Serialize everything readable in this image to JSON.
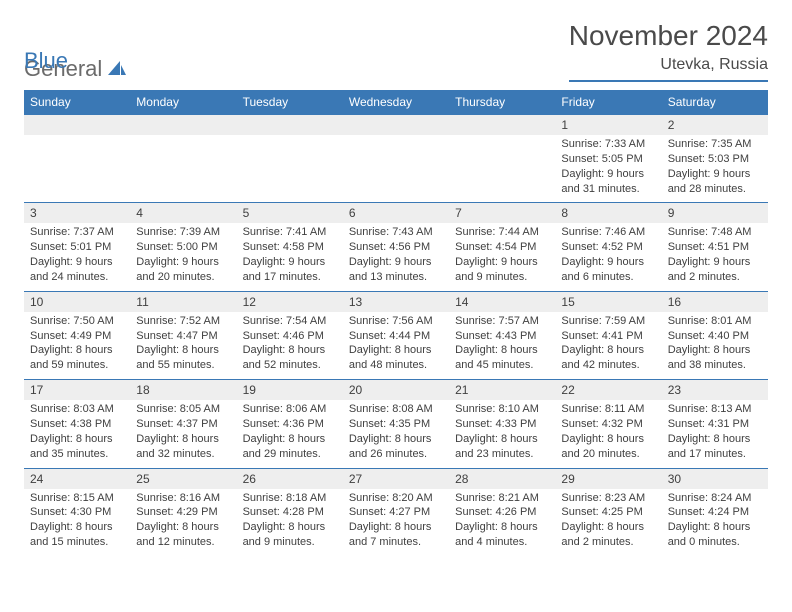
{
  "logo": {
    "text_gray": "General",
    "text_blue": "Blue"
  },
  "title": "November 2024",
  "location": "Utevka, Russia",
  "colors": {
    "header_bg": "#3a78b5",
    "header_text": "#ffffff",
    "daynum_bg": "#eeeeee",
    "text": "#404040",
    "rule": "#3a78b5"
  },
  "day_names": [
    "Sunday",
    "Monday",
    "Tuesday",
    "Wednesday",
    "Thursday",
    "Friday",
    "Saturday"
  ],
  "weeks": [
    [
      null,
      null,
      null,
      null,
      null,
      {
        "n": "1",
        "sr": "7:33 AM",
        "ss": "5:05 PM",
        "dh": "9",
        "dm": "31"
      },
      {
        "n": "2",
        "sr": "7:35 AM",
        "ss": "5:03 PM",
        "dh": "9",
        "dm": "28"
      }
    ],
    [
      {
        "n": "3",
        "sr": "7:37 AM",
        "ss": "5:01 PM",
        "dh": "9",
        "dm": "24"
      },
      {
        "n": "4",
        "sr": "7:39 AM",
        "ss": "5:00 PM",
        "dh": "9",
        "dm": "20"
      },
      {
        "n": "5",
        "sr": "7:41 AM",
        "ss": "4:58 PM",
        "dh": "9",
        "dm": "17"
      },
      {
        "n": "6",
        "sr": "7:43 AM",
        "ss": "4:56 PM",
        "dh": "9",
        "dm": "13"
      },
      {
        "n": "7",
        "sr": "7:44 AM",
        "ss": "4:54 PM",
        "dh": "9",
        "dm": "9"
      },
      {
        "n": "8",
        "sr": "7:46 AM",
        "ss": "4:52 PM",
        "dh": "9",
        "dm": "6"
      },
      {
        "n": "9",
        "sr": "7:48 AM",
        "ss": "4:51 PM",
        "dh": "9",
        "dm": "2"
      }
    ],
    [
      {
        "n": "10",
        "sr": "7:50 AM",
        "ss": "4:49 PM",
        "dh": "8",
        "dm": "59"
      },
      {
        "n": "11",
        "sr": "7:52 AM",
        "ss": "4:47 PM",
        "dh": "8",
        "dm": "55"
      },
      {
        "n": "12",
        "sr": "7:54 AM",
        "ss": "4:46 PM",
        "dh": "8",
        "dm": "52"
      },
      {
        "n": "13",
        "sr": "7:56 AM",
        "ss": "4:44 PM",
        "dh": "8",
        "dm": "48"
      },
      {
        "n": "14",
        "sr": "7:57 AM",
        "ss": "4:43 PM",
        "dh": "8",
        "dm": "45"
      },
      {
        "n": "15",
        "sr": "7:59 AM",
        "ss": "4:41 PM",
        "dh": "8",
        "dm": "42"
      },
      {
        "n": "16",
        "sr": "8:01 AM",
        "ss": "4:40 PM",
        "dh": "8",
        "dm": "38"
      }
    ],
    [
      {
        "n": "17",
        "sr": "8:03 AM",
        "ss": "4:38 PM",
        "dh": "8",
        "dm": "35"
      },
      {
        "n": "18",
        "sr": "8:05 AM",
        "ss": "4:37 PM",
        "dh": "8",
        "dm": "32"
      },
      {
        "n": "19",
        "sr": "8:06 AM",
        "ss": "4:36 PM",
        "dh": "8",
        "dm": "29"
      },
      {
        "n": "20",
        "sr": "8:08 AM",
        "ss": "4:35 PM",
        "dh": "8",
        "dm": "26"
      },
      {
        "n": "21",
        "sr": "8:10 AM",
        "ss": "4:33 PM",
        "dh": "8",
        "dm": "23"
      },
      {
        "n": "22",
        "sr": "8:11 AM",
        "ss": "4:32 PM",
        "dh": "8",
        "dm": "20"
      },
      {
        "n": "23",
        "sr": "8:13 AM",
        "ss": "4:31 PM",
        "dh": "8",
        "dm": "17"
      }
    ],
    [
      {
        "n": "24",
        "sr": "8:15 AM",
        "ss": "4:30 PM",
        "dh": "8",
        "dm": "15"
      },
      {
        "n": "25",
        "sr": "8:16 AM",
        "ss": "4:29 PM",
        "dh": "8",
        "dm": "12"
      },
      {
        "n": "26",
        "sr": "8:18 AM",
        "ss": "4:28 PM",
        "dh": "8",
        "dm": "9"
      },
      {
        "n": "27",
        "sr": "8:20 AM",
        "ss": "4:27 PM",
        "dh": "8",
        "dm": "7"
      },
      {
        "n": "28",
        "sr": "8:21 AM",
        "ss": "4:26 PM",
        "dh": "8",
        "dm": "4"
      },
      {
        "n": "29",
        "sr": "8:23 AM",
        "ss": "4:25 PM",
        "dh": "8",
        "dm": "2"
      },
      {
        "n": "30",
        "sr": "8:24 AM",
        "ss": "4:24 PM",
        "dh": "8",
        "dm": "0"
      }
    ]
  ],
  "labels": {
    "sunrise": "Sunrise:",
    "sunset": "Sunset:",
    "daylight": "Daylight:",
    "hours": "hours",
    "and": "and",
    "minutes": "minutes."
  }
}
